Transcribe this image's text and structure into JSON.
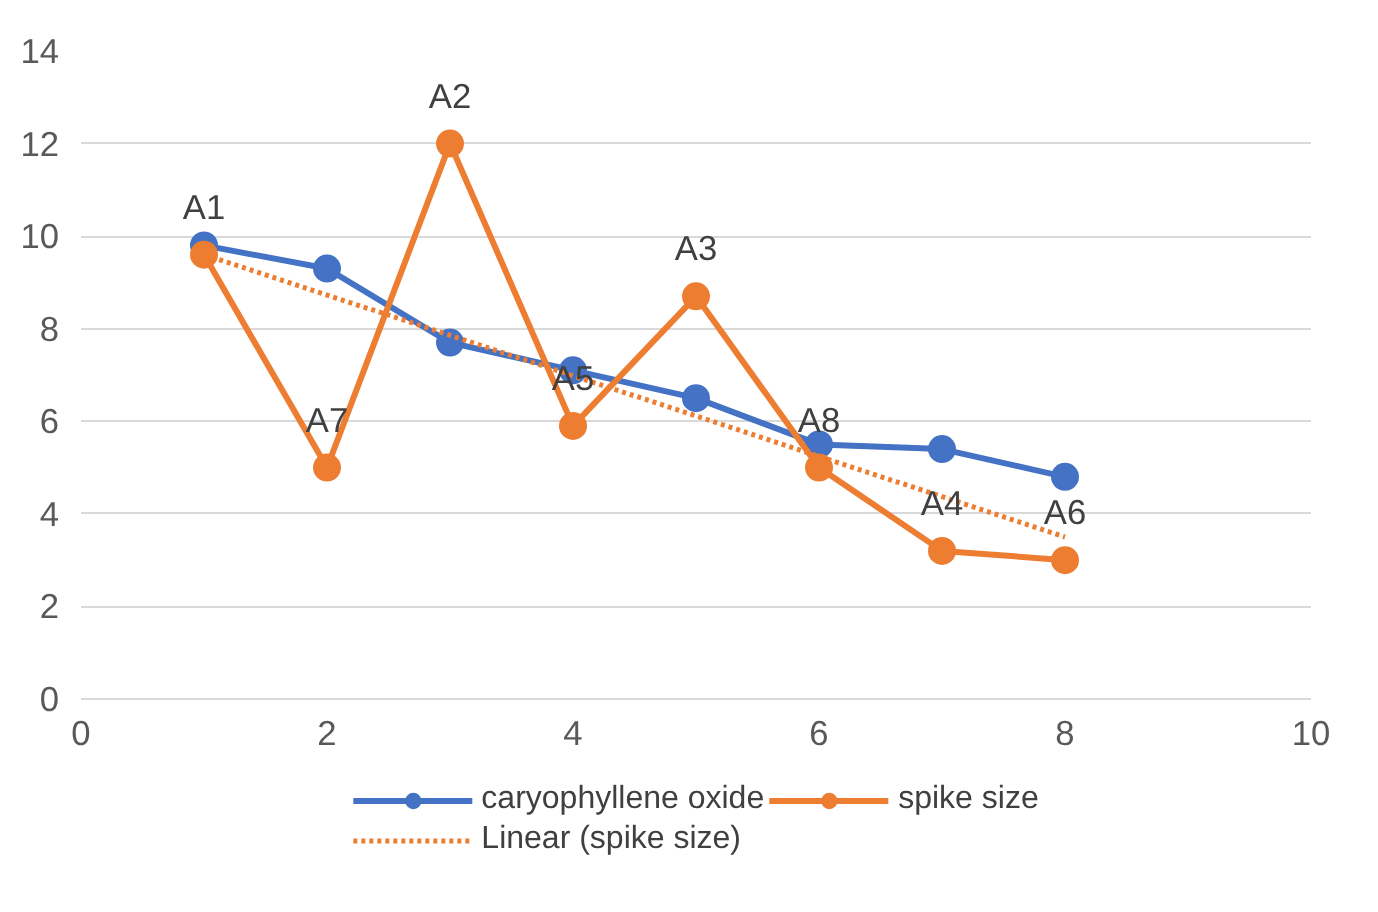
{
  "chart_data": {
    "type": "line",
    "x": [
      1,
      2,
      3,
      4,
      5,
      6,
      7,
      8
    ],
    "series": [
      {
        "name": "caryophyllene oxide",
        "color": "#4472c4",
        "values": [
          9.8,
          9.3,
          7.7,
          7.1,
          6.5,
          5.5,
          5.4,
          4.8
        ],
        "marker": "circle",
        "line_style": "solid"
      },
      {
        "name": "spike size",
        "color": "#ed7d31",
        "values": [
          9.6,
          5.0,
          12.0,
          5.9,
          8.7,
          5.0,
          3.2,
          3.0
        ],
        "marker": "circle",
        "line_style": "solid"
      },
      {
        "name": "Linear (spike size)",
        "color": "#ed7d31",
        "x": [
          1,
          8
        ],
        "values": [
          9.6,
          3.5
        ],
        "marker": "none",
        "line_style": "dotted"
      }
    ],
    "xlim": [
      0,
      10
    ],
    "xticks": [
      0,
      2,
      4,
      6,
      8,
      10
    ],
    "ylim": [
      0,
      14
    ],
    "yticks": [
      0,
      2,
      4,
      6,
      8,
      10,
      12,
      14
    ],
    "grid": "y",
    "legend": "bottom",
    "annotations": [
      {
        "text": "A1",
        "x": 1,
        "y": 9.6
      },
      {
        "text": "A7",
        "x": 2,
        "y": 5.0
      },
      {
        "text": "A2",
        "x": 3,
        "y": 12.0
      },
      {
        "text": "A5",
        "x": 4,
        "y": 5.9
      },
      {
        "text": "A3",
        "x": 5,
        "y": 8.7
      },
      {
        "text": "A8",
        "x": 6,
        "y": 5.0
      },
      {
        "text": "A4",
        "x": 7,
        "y": 3.2
      },
      {
        "text": "A6",
        "x": 8,
        "y": 3.0
      }
    ]
  }
}
